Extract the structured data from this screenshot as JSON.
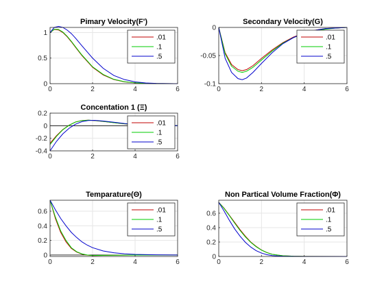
{
  "chart_data": [
    {
      "type": "line",
      "title": "Pimary Velocity(F')",
      "xlim": [
        0,
        6
      ],
      "ylim": [
        0,
        1.1
      ],
      "xticks": [
        "0",
        "2",
        "4",
        "6"
      ],
      "yticks": [
        "0",
        "0.5",
        "1"
      ],
      "zero_line": false,
      "grid": true,
      "legend": "top-right",
      "series": [
        {
          "name": ".01",
          "color": "#c00000",
          "x": [
            0,
            0.2,
            0.4,
            0.6,
            0.8,
            1,
            1.2,
            1.5,
            2,
            2.5,
            3,
            3.5,
            4,
            4.5,
            5,
            6
          ],
          "y": [
            1,
            1.06,
            1.05,
            1.0,
            0.92,
            0.82,
            0.71,
            0.55,
            0.32,
            0.17,
            0.08,
            0.035,
            0.015,
            0.006,
            0.002,
            0
          ]
        },
        {
          "name": ".1",
          "color": "#00cc00",
          "x": [
            0,
            0.2,
            0.4,
            0.6,
            0.8,
            1,
            1.2,
            1.5,
            2,
            2.5,
            3,
            3.5,
            4,
            4.5,
            5,
            6
          ],
          "y": [
            1,
            1.065,
            1.06,
            1.01,
            0.93,
            0.83,
            0.72,
            0.56,
            0.33,
            0.18,
            0.085,
            0.038,
            0.016,
            0.006,
            0.002,
            0
          ]
        },
        {
          "name": ".5",
          "color": "#0000cc",
          "x": [
            0,
            0.2,
            0.4,
            0.6,
            0.8,
            1,
            1.2,
            1.5,
            2,
            2.5,
            3,
            3.5,
            4,
            4.5,
            5,
            6
          ],
          "y": [
            1,
            1.1,
            1.12,
            1.1,
            1.05,
            0.98,
            0.89,
            0.74,
            0.5,
            0.3,
            0.16,
            0.08,
            0.035,
            0.014,
            0.005,
            0
          ]
        }
      ]
    },
    {
      "type": "line",
      "title": "Secondary Velocity(G)",
      "xlim": [
        0,
        6
      ],
      "ylim": [
        -0.1,
        0
      ],
      "xticks": [
        "0",
        "2",
        "4",
        "6"
      ],
      "yticks": [
        "-0.1",
        "-0.05",
        "0"
      ],
      "zero_line": false,
      "grid": true,
      "legend": "top-right",
      "series": [
        {
          "name": ".01",
          "color": "#c00000",
          "x": [
            0,
            0.3,
            0.6,
            0.9,
            1.1,
            1.3,
            1.6,
            2,
            2.5,
            3,
            3.5,
            4,
            4.5,
            5,
            5.5,
            6
          ],
          "y": [
            0,
            -0.045,
            -0.066,
            -0.075,
            -0.077,
            -0.075,
            -0.068,
            -0.055,
            -0.04,
            -0.027,
            -0.017,
            -0.01,
            -0.005,
            -0.002,
            -0.001,
            0
          ]
        },
        {
          "name": ".1",
          "color": "#00cc00",
          "x": [
            0,
            0.3,
            0.6,
            0.9,
            1.1,
            1.3,
            1.6,
            2,
            2.5,
            3,
            3.5,
            4,
            4.5,
            5,
            5.5,
            6
          ],
          "y": [
            0,
            -0.047,
            -0.069,
            -0.078,
            -0.08,
            -0.078,
            -0.071,
            -0.058,
            -0.042,
            -0.028,
            -0.018,
            -0.011,
            -0.006,
            -0.003,
            -0.001,
            0
          ]
        },
        {
          "name": ".5",
          "color": "#0000cc",
          "x": [
            0,
            0.3,
            0.6,
            0.9,
            1.1,
            1.3,
            1.6,
            2,
            2.5,
            3,
            3.5,
            4,
            4.5,
            5,
            5.5,
            6
          ],
          "y": [
            0,
            -0.055,
            -0.08,
            -0.091,
            -0.093,
            -0.09,
            -0.08,
            -0.064,
            -0.045,
            -0.029,
            -0.018,
            -0.01,
            -0.005,
            -0.002,
            -0.001,
            0
          ]
        }
      ]
    },
    {
      "type": "line",
      "title": "Concentation 1 (Ξ)",
      "xlim": [
        0,
        6
      ],
      "ylim": [
        -0.4,
        0.2
      ],
      "xticks": [
        "0",
        "2",
        "4",
        "6"
      ],
      "yticks": [
        "-0.4",
        "-0.2",
        "0",
        "0.2"
      ],
      "zero_line": true,
      "grid": true,
      "legend": "top-right",
      "series": [
        {
          "name": ".01",
          "color": "#c00000",
          "x": [
            0,
            0.3,
            0.6,
            0.9,
            1.2,
            1.5,
            1.8,
            2.1,
            2.5,
            3,
            3.5,
            4,
            4.5,
            5,
            6
          ],
          "y": [
            -0.28,
            -0.16,
            -0.06,
            0.01,
            0.06,
            0.083,
            0.088,
            0.082,
            0.068,
            0.048,
            0.03,
            0.018,
            0.01,
            0.005,
            0.001
          ]
        },
        {
          "name": ".1",
          "color": "#00cc00",
          "x": [
            0,
            0.3,
            0.6,
            0.9,
            1.2,
            1.5,
            1.8,
            2.1,
            2.5,
            3,
            3.5,
            4,
            4.5,
            5,
            6
          ],
          "y": [
            -0.3,
            -0.17,
            -0.065,
            0.008,
            0.058,
            0.082,
            0.088,
            0.083,
            0.069,
            0.049,
            0.031,
            0.018,
            0.01,
            0.005,
            0.001
          ]
        },
        {
          "name": ".5",
          "color": "#0000cc",
          "x": [
            0,
            0.3,
            0.6,
            0.9,
            1.2,
            1.5,
            1.8,
            2.1,
            2.5,
            3,
            3.5,
            4,
            4.5,
            5,
            6
          ],
          "y": [
            -0.4,
            -0.25,
            -0.13,
            -0.04,
            0.025,
            0.065,
            0.083,
            0.085,
            0.075,
            0.055,
            0.035,
            0.02,
            0.011,
            0.005,
            0.001
          ]
        }
      ]
    },
    {
      "type": "line",
      "title": "Temparature(Θ)",
      "xlim": [
        0,
        6
      ],
      "ylim": [
        -0.02,
        0.75
      ],
      "xticks": [
        "0",
        "2",
        "4",
        "6"
      ],
      "yticks": [
        "0",
        "0.2",
        "0.4",
        "0.6"
      ],
      "zero_line": true,
      "grid": true,
      "legend": "top-right",
      "series": [
        {
          "name": ".01",
          "color": "#c00000",
          "x": [
            0,
            0.25,
            0.5,
            0.75,
            1,
            1.25,
            1.5,
            1.75,
            2,
            2.5,
            3,
            4,
            6
          ],
          "y": [
            0.75,
            0.5,
            0.31,
            0.18,
            0.09,
            0.04,
            0.012,
            -0.002,
            -0.008,
            -0.006,
            -0.003,
            -0.001,
            0
          ]
        },
        {
          "name": ".1",
          "color": "#00cc00",
          "x": [
            0,
            0.25,
            0.5,
            0.75,
            1,
            1.25,
            1.5,
            1.75,
            2,
            2.5,
            3,
            4,
            6
          ],
          "y": [
            0.75,
            0.52,
            0.33,
            0.2,
            0.1,
            0.045,
            0.015,
            0.0,
            -0.007,
            -0.005,
            -0.003,
            -0.001,
            0
          ]
        },
        {
          "name": ".5",
          "color": "#0000cc",
          "x": [
            0,
            0.25,
            0.5,
            0.75,
            1,
            1.25,
            1.5,
            1.75,
            2,
            2.5,
            3,
            3.5,
            4,
            5,
            6
          ],
          "y": [
            0.75,
            0.62,
            0.5,
            0.4,
            0.31,
            0.24,
            0.18,
            0.135,
            0.1,
            0.055,
            0.03,
            0.016,
            0.008,
            0.002,
            0
          ]
        }
      ]
    },
    {
      "type": "line",
      "title": "Non Partical Volume Fraction(Φ)",
      "xlim": [
        0,
        6
      ],
      "ylim": [
        0,
        0.78
      ],
      "xticks": [
        "0",
        "2",
        "4",
        "6"
      ],
      "yticks": [
        "0",
        "0.2",
        "0.4",
        "0.6"
      ],
      "zero_line": false,
      "grid": true,
      "legend": "top-right",
      "series": [
        {
          "name": ".01",
          "color": "#c00000",
          "x": [
            0,
            0.25,
            0.5,
            0.75,
            1,
            1.25,
            1.5,
            1.75,
            2,
            2.25,
            2.5,
            3,
            3.5,
            4,
            6
          ],
          "y": [
            0.75,
            0.67,
            0.57,
            0.47,
            0.37,
            0.28,
            0.2,
            0.14,
            0.09,
            0.055,
            0.03,
            0.01,
            0.003,
            0.001,
            0
          ]
        },
        {
          "name": ".1",
          "color": "#00cc00",
          "x": [
            0,
            0.25,
            0.5,
            0.75,
            1,
            1.25,
            1.5,
            1.75,
            2,
            2.25,
            2.5,
            3,
            3.5,
            4,
            6
          ],
          "y": [
            0.75,
            0.665,
            0.565,
            0.46,
            0.36,
            0.27,
            0.195,
            0.135,
            0.088,
            0.053,
            0.03,
            0.01,
            0.003,
            0.001,
            0
          ]
        },
        {
          "name": ".5",
          "color": "#0000cc",
          "x": [
            0,
            0.25,
            0.5,
            0.75,
            1,
            1.25,
            1.5,
            1.75,
            2,
            2.25,
            2.5,
            3,
            3.5,
            4,
            6
          ],
          "y": [
            0.75,
            0.63,
            0.5,
            0.38,
            0.28,
            0.195,
            0.13,
            0.08,
            0.047,
            0.025,
            0.012,
            0.003,
            0.001,
            0,
            0
          ]
        }
      ]
    }
  ]
}
